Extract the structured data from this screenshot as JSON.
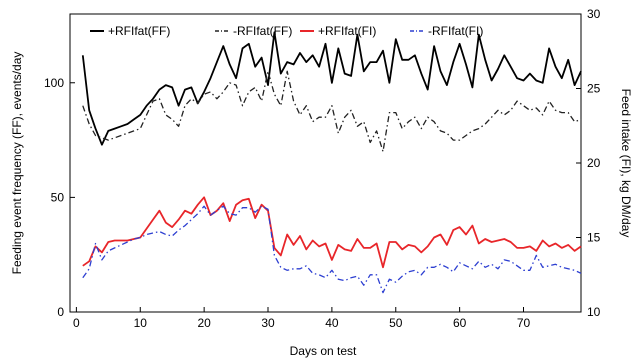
{
  "chart_data": {
    "type": "line",
    "title": "",
    "xlabel": "Days on test",
    "ylabel_left": "Feeding event frequency (FF), events/day",
    "ylabel_right": "Feed intake (FI), kg DM/day",
    "xlim": [
      -1,
      79
    ],
    "ylim_left": [
      0,
      130
    ],
    "ylim_right": [
      10,
      30
    ],
    "x_ticks": [
      "0",
      "10",
      "20",
      "30",
      "40",
      "50",
      "60",
      "70"
    ],
    "y_left_ticks": [
      "0",
      "50",
      "100"
    ],
    "y_right_ticks": [
      "10",
      "15",
      "20",
      "25",
      "30"
    ],
    "grid": false,
    "legend_position": "top",
    "x": [
      1,
      2,
      3,
      4,
      5,
      6,
      7,
      8,
      9,
      10,
      11,
      12,
      13,
      14,
      15,
      16,
      17,
      18,
      19,
      20,
      21,
      22,
      23,
      24,
      25,
      26,
      27,
      28,
      29,
      30,
      31,
      32,
      33,
      34,
      35,
      36,
      37,
      38,
      39,
      40,
      41,
      42,
      43,
      44,
      45,
      46,
      47,
      48,
      49,
      50,
      51,
      52,
      53,
      54,
      55,
      56,
      57,
      58,
      59,
      60,
      61,
      62,
      63,
      64,
      65,
      66,
      67,
      68,
      69,
      70,
      71,
      72,
      73,
      74,
      75,
      76,
      77,
      78,
      79
    ],
    "series": [
      {
        "name": "+RFIfat(FF)",
        "axis": "left",
        "color": "#000000",
        "dash": "solid",
        "values": [
          112,
          88,
          80,
          73,
          79,
          80,
          81,
          82,
          84,
          86,
          90,
          93,
          97,
          99,
          98,
          90,
          97,
          98,
          91,
          96,
          102,
          109,
          116,
          108,
          102,
          115,
          117,
          107,
          111,
          99,
          122,
          104,
          109,
          108,
          113,
          109,
          112,
          107,
          117,
          100,
          115,
          104,
          103,
          121,
          105,
          109,
          109,
          114,
          100,
          119,
          110,
          110,
          112,
          104,
          97,
          116,
          105,
          99,
          109,
          117,
          108,
          98,
          121,
          110,
          101,
          106,
          112,
          107,
          102,
          101,
          104,
          101,
          100,
          115,
          107,
          102,
          110,
          99,
          105
        ]
      },
      {
        "name": "-RFIfat(FF)",
        "axis": "left",
        "color": "#222222",
        "dash": "dashdot",
        "values": [
          90,
          82,
          77,
          76,
          75,
          76,
          77,
          78,
          79,
          80,
          86,
          92,
          93,
          86,
          84,
          81,
          90,
          93,
          91,
          95,
          96,
          93,
          96,
          100,
          99,
          90,
          96,
          98,
          92,
          105,
          95,
          90,
          105,
          92,
          86,
          90,
          83,
          85,
          85,
          90,
          78,
          85,
          88,
          81,
          83,
          74,
          79,
          70,
          87,
          87,
          80,
          83,
          85,
          80,
          85,
          83,
          79,
          78,
          75,
          75,
          77,
          79,
          80,
          82,
          85,
          88,
          86,
          88,
          92,
          90,
          88,
          89,
          86,
          92,
          88,
          87,
          87,
          83,
          84
        ]
      },
      {
        "name": "+RFIfat(FI)",
        "axis": "right",
        "color": "#e8262a",
        "dash": "solid",
        "values": [
          13.1,
          13.4,
          14.4,
          14,
          14.7,
          14.8,
          14.8,
          14.8,
          14.9,
          15,
          15.6,
          16.2,
          16.8,
          16,
          15.7,
          16.2,
          16.8,
          16.6,
          17.2,
          17.7,
          16.5,
          16.8,
          17.3,
          16.1,
          17.2,
          17.5,
          17.6,
          16.3,
          17.2,
          16.8,
          14.3,
          13.8,
          15.2,
          14.5,
          15.1,
          14.2,
          14.8,
          14.4,
          14.6,
          13.5,
          14.5,
          14.2,
          14.1,
          14.9,
          14.3,
          14.3,
          14.6,
          13,
          14.7,
          14.7,
          14.2,
          14.5,
          14.4,
          14,
          14.4,
          15,
          15.2,
          14.5,
          15.5,
          15.7,
          15.2,
          15.8,
          14.6,
          14.9,
          14.7,
          14.8,
          14.9,
          14.7,
          14.3,
          14.3,
          14.4,
          14.1,
          14.8,
          14.4,
          14.6,
          14.3,
          14.5,
          14.1,
          14.4
        ]
      },
      {
        "name": "-RFIfat(FI)",
        "axis": "right",
        "color": "#2d3fd1",
        "dash": "dashdot",
        "values": [
          12.3,
          12.9,
          14.6,
          13.5,
          14.1,
          14.3,
          14.5,
          14.7,
          14.9,
          15,
          15.2,
          15.3,
          15.4,
          15.2,
          15.1,
          15.5,
          15.8,
          16.2,
          16.6,
          17.1,
          16.5,
          16.8,
          17.1,
          16.6,
          16.5,
          17,
          17,
          16.7,
          17.1,
          16.9,
          13.8,
          13,
          12.8,
          12.9,
          12.9,
          13.1,
          12.6,
          12.5,
          12.3,
          12.8,
          12.2,
          12.1,
          12.3,
          12.4,
          11.8,
          12.5,
          12.5,
          11.3,
          12.2,
          12,
          12.4,
          12.7,
          12.8,
          12.5,
          13,
          13,
          13.2,
          13,
          12.7,
          13.3,
          13.1,
          12.9,
          13.4,
          13,
          13.2,
          12.9,
          13.5,
          13.4,
          13.1,
          12.8,
          12.8,
          13.8,
          13,
          13.1,
          13.2,
          13,
          12.9,
          12.8,
          12.6
        ]
      }
    ]
  }
}
